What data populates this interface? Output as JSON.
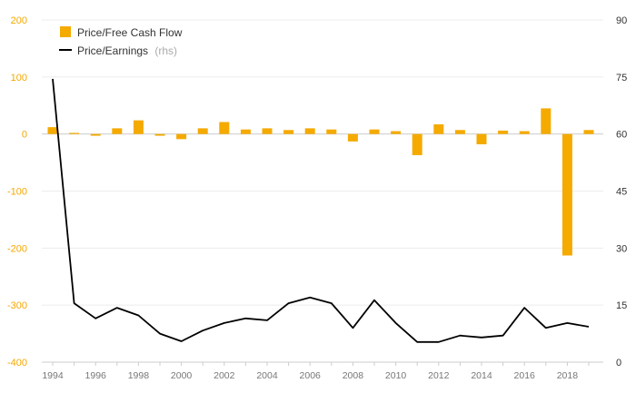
{
  "chart_data": {
    "type": "bar+line",
    "x": [
      1994,
      1995,
      1996,
      1997,
      1998,
      1999,
      2000,
      2001,
      2002,
      2003,
      2004,
      2005,
      2006,
      2007,
      2008,
      2009,
      2010,
      2011,
      2012,
      2013,
      2014,
      2015,
      2016,
      2017,
      2018,
      2019
    ],
    "x_tick_labels": [
      "1994",
      "1996",
      "1998",
      "2000",
      "2002",
      "2004",
      "2006",
      "2008",
      "2010",
      "2012",
      "2014",
      "2016",
      "2018"
    ],
    "series": [
      {
        "name": "Price/Free Cash Flow",
        "type": "bar",
        "axis": "left",
        "color": "#F5AA00",
        "values": [
          12,
          2,
          -3,
          10,
          24,
          -3,
          -9,
          10,
          21,
          8,
          10,
          7,
          10,
          8,
          -13,
          8,
          5,
          -37,
          17,
          7,
          -18,
          6,
          5,
          45,
          -213,
          7
        ]
      },
      {
        "name": "Price/Earnings",
        "name_note": "(rhs)",
        "type": "line",
        "axis": "right",
        "color": "#000000",
        "values": [
          74.5,
          15.5,
          11.5,
          14.3,
          12.3,
          7.5,
          5.5,
          8.3,
          10.3,
          11.5,
          11.0,
          15.5,
          17.0,
          15.5,
          9.0,
          16.3,
          10.3,
          5.3,
          5.3,
          7.0,
          6.5,
          7.0,
          14.3,
          9.0,
          10.3,
          9.3
        ]
      }
    ],
    "y_left": {
      "lim": [
        -400,
        200
      ],
      "ticks": [
        "200",
        "100",
        "0",
        "-100",
        "-200",
        "-300",
        "-400"
      ],
      "tick_values": [
        200,
        100,
        0,
        -100,
        -200,
        -300,
        -400
      ],
      "color": "#F5A800"
    },
    "y_right": {
      "lim": [
        0,
        90
      ],
      "ticks": [
        "90",
        "75",
        "60",
        "45",
        "30",
        "15",
        "0"
      ],
      "tick_values": [
        90,
        75,
        60,
        45,
        30,
        15,
        0
      ]
    },
    "grid": true,
    "legend": {
      "placement": "top-left"
    }
  }
}
